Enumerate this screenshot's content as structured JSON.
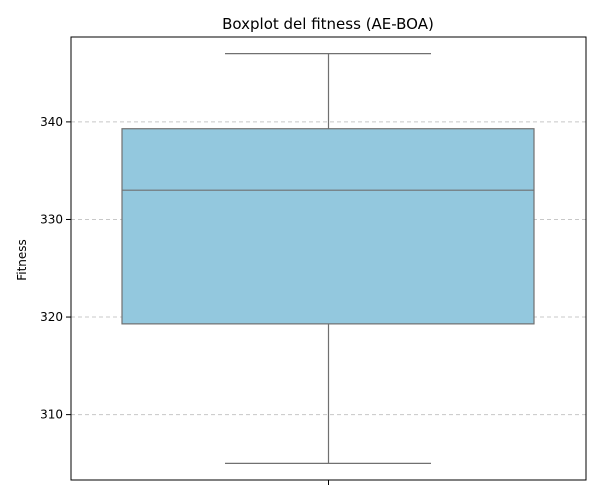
{
  "chart_data": {
    "type": "boxplot",
    "title": "Boxplot del fitness (AE-BOA)",
    "xlabel": "",
    "ylabel": "Fitness",
    "ylim": [
      303.3,
      348.7
    ],
    "yticks": [
      310,
      320,
      330,
      340
    ],
    "grid": {
      "axis": "y",
      "style": "dashed"
    },
    "series": [
      {
        "whisker_low": 305,
        "q1": 319.3,
        "median": 333,
        "q3": 339.3,
        "whisker_high": 347
      }
    ],
    "colors": {
      "box_fill": "#93c8de",
      "box_edge": "#707070",
      "grid": "#c8c8c8"
    }
  }
}
